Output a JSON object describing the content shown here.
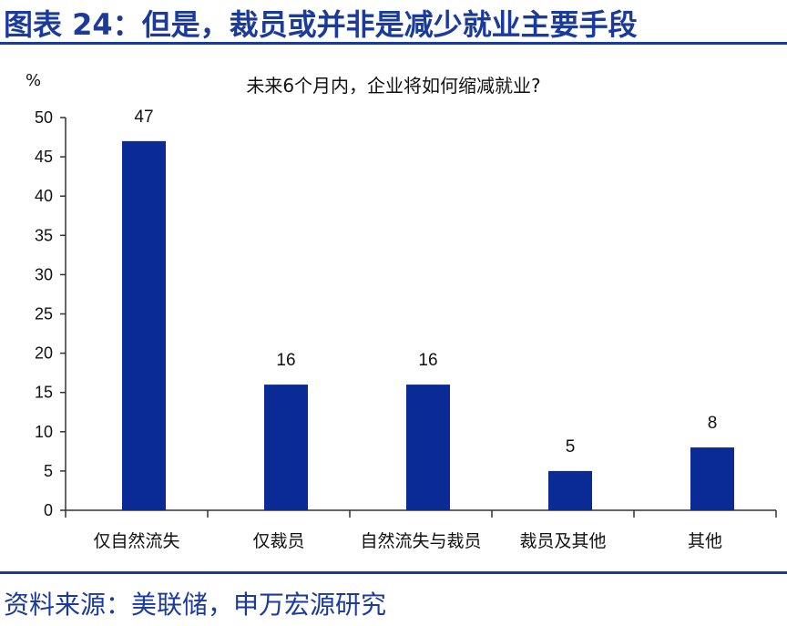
{
  "header": {
    "title": "图表 24：但是，裁员或并非是减少就业主要手段"
  },
  "footer": {
    "source": "资料来源：美联储，申万宏源研究"
  },
  "colors": {
    "accent": "#1a3a9c",
    "bar": "#0a2a96"
  },
  "chart_data": {
    "type": "bar",
    "title": "未来6个月内，企业将如何缩减就业?",
    "ylabel": "%",
    "xlabel": "",
    "ylim": [
      0,
      50
    ],
    "yticks": [
      0,
      5,
      10,
      15,
      20,
      25,
      30,
      35,
      40,
      45,
      50
    ],
    "categories": [
      "仅自然流失",
      "仅裁员",
      "自然流失与裁员",
      "裁员及其他",
      "其他"
    ],
    "values": [
      47,
      16,
      16,
      5,
      8
    ],
    "grid": false,
    "legend": "none"
  }
}
